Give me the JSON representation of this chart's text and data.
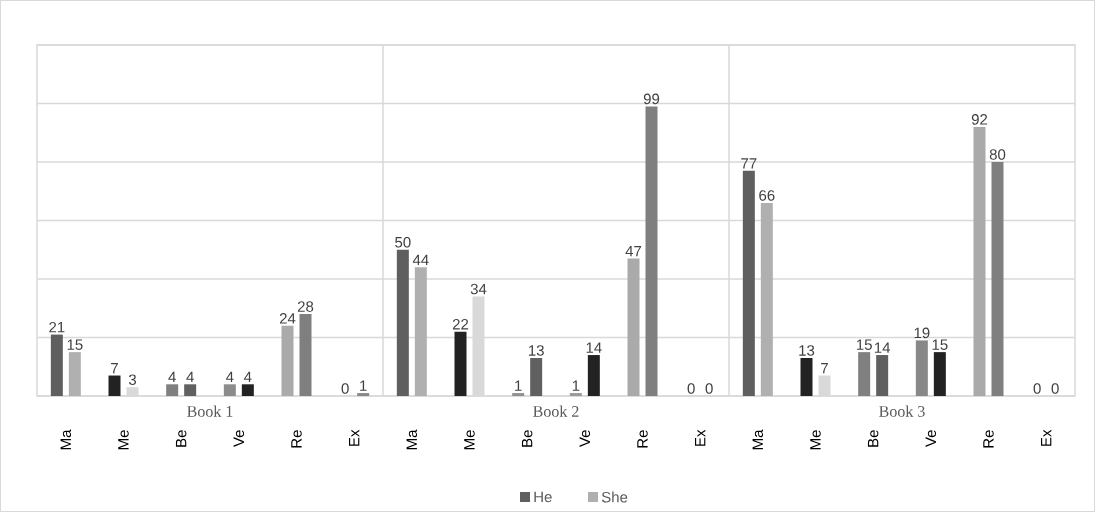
{
  "chart_data": {
    "type": "bar",
    "categories": [
      "Ma",
      "Me",
      "Be",
      "Ve",
      "Re",
      "Ex",
      "Ma",
      "Me",
      "Be",
      "Ve",
      "Re",
      "Ex",
      "Ma",
      "Me",
      "Be",
      "Ve",
      "Re",
      "Ex"
    ],
    "series": [
      {
        "name": "He",
        "color": "#5f5f5f",
        "values": [
          21,
          7,
          4,
          4,
          24,
          0,
          50,
          22,
          1,
          1,
          47,
          0,
          77,
          13,
          15,
          19,
          92,
          0
        ],
        "colors": [
          "#5f5f5f",
          "#222222",
          "#808080",
          "#8c8c8c",
          "#aaaaaa",
          "#5f5f5f",
          "#5f5f5f",
          "#222222",
          "#909090",
          "#999999",
          "#aaaaaa",
          "#5f5f5f",
          "#5f5f5f",
          "#222222",
          "#808080",
          "#888888",
          "#aaaaaa",
          "#5f5f5f"
        ]
      },
      {
        "name": "She",
        "color": "#afafaf",
        "values": [
          15,
          3,
          4,
          4,
          28,
          1,
          44,
          34,
          13,
          14,
          99,
          0,
          66,
          7,
          14,
          15,
          80,
          0
        ],
        "colors": [
          "#b0b0b0",
          "#d9d9d9",
          "#606060",
          "#222222",
          "#7f7f7f",
          "#888888",
          "#b0b0b0",
          "#d9d9d9",
          "#606060",
          "#222222",
          "#7f7f7f",
          "#888888",
          "#b0b0b0",
          "#d9d9d9",
          "#606060",
          "#222222",
          "#7f7f7f",
          "#888888"
        ]
      }
    ],
    "annotations": [
      "Book 1",
      "Book 2",
      "Book 3"
    ],
    "ylim": [
      0,
      120
    ],
    "yticks": [
      {
        "value": 0,
        "label": null
      },
      {
        "value": 20,
        "label": null
      },
      {
        "value": 40,
        "label": null
      },
      {
        "value": 60,
        "label": null
      },
      {
        "value": 80,
        "label": null
      },
      {
        "value": 100,
        "label": null
      },
      {
        "value": 120,
        "label": null
      }
    ],
    "tick_labels": "x",
    "grid": "y",
    "data_labels": true,
    "legend": "bottom"
  }
}
